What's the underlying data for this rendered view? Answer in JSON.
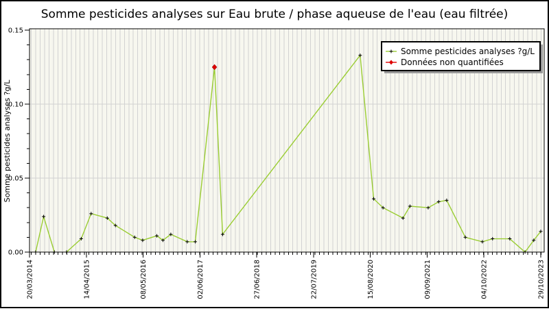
{
  "chart_data": {
    "type": "line",
    "title": "Somme pesticides analyses sur Eau brute / phase aqueuse de l'eau (eau filtrée)",
    "ylabel": "Somme pesticides analyses ?g/L",
    "xlabel": "",
    "ylim": [
      0,
      0.15
    ],
    "y_major_ticks": [
      0.0,
      0.05,
      0.1,
      0.15
    ],
    "y_tick_labels": [
      "0.00",
      "0.05",
      "0.10",
      "0.15"
    ],
    "y_minor_step": 0.01,
    "x_tick_labels": [
      "20/03/2014",
      "14/04/2015",
      "08/05/2016",
      "02/06/2017",
      "27/06/2018",
      "22/07/2019",
      "15/08/2020",
      "09/09/2021",
      "04/10/2022",
      "29/10/2023"
    ],
    "x_axis_start_date": "2014-03-20",
    "grid": {
      "vertical": "monthly",
      "horizontal": "major-y-ticks"
    },
    "legend_position": "top-right",
    "colors": {
      "plot_bg": "#F7F7EF",
      "grid": "#D2D2D2",
      "frame": "#000000",
      "series_line": "#9ACD32",
      "marker": "#000000",
      "non_quantified": "#DD0000",
      "legend_shadow": "#999999"
    },
    "series": [
      {
        "name": "Somme pesticides analyses ?g/L",
        "color": "#9ACD32",
        "marker": "plus",
        "marker_color": "#000000",
        "segments": [
          [
            {
              "date": "2014-05-01",
              "value": 0.0
            },
            {
              "date": "2014-06-25",
              "value": 0.024
            },
            {
              "date": "2014-09-07",
              "value": 0.0
            }
          ],
          [
            {
              "date": "2014-11-29",
              "value": 0.0
            },
            {
              "date": "2015-03-10",
              "value": 0.009
            },
            {
              "date": "2015-05-17",
              "value": 0.026
            },
            {
              "date": "2015-09-05",
              "value": 0.023
            },
            {
              "date": "2015-10-31",
              "value": 0.018
            },
            {
              "date": "2016-03-11",
              "value": 0.01
            },
            {
              "date": "2016-05-05",
              "value": 0.008
            },
            {
              "date": "2016-08-10",
              "value": 0.011
            },
            {
              "date": "2016-09-21",
              "value": 0.008
            },
            {
              "date": "2016-11-14",
              "value": 0.012
            },
            {
              "date": "2017-03-07",
              "value": 0.007
            },
            {
              "date": "2017-05-01",
              "value": 0.007
            },
            {
              "date": "2017-09-10",
              "value": 0.125
            },
            {
              "date": "2017-11-05",
              "value": 0.012
            },
            {
              "date": "2020-06-06",
              "value": 0.133
            },
            {
              "date": "2020-09-07",
              "value": 0.036
            },
            {
              "date": "2020-11-10",
              "value": 0.03
            },
            {
              "date": "2021-03-27",
              "value": 0.023
            },
            {
              "date": "2021-05-14",
              "value": 0.031
            },
            {
              "date": "2021-09-16",
              "value": 0.03
            },
            {
              "date": "2021-11-27",
              "value": 0.034
            },
            {
              "date": "2022-01-21",
              "value": 0.035
            },
            {
              "date": "2022-05-29",
              "value": 0.01
            },
            {
              "date": "2022-09-23",
              "value": 0.007
            },
            {
              "date": "2022-12-02",
              "value": 0.009
            },
            {
              "date": "2023-03-30",
              "value": 0.009
            },
            {
              "date": "2023-07-13",
              "value": 0.0
            },
            {
              "date": "2023-09-11",
              "value": 0.008
            },
            {
              "date": "2023-10-29",
              "value": 0.014
            }
          ]
        ]
      },
      {
        "name": "Données non quantifiées",
        "color": "#DD0000",
        "marker": "diamond",
        "marker_color": "#DD0000",
        "points": [
          {
            "date": "2017-09-10",
            "value": 0.125
          }
        ]
      }
    ]
  }
}
